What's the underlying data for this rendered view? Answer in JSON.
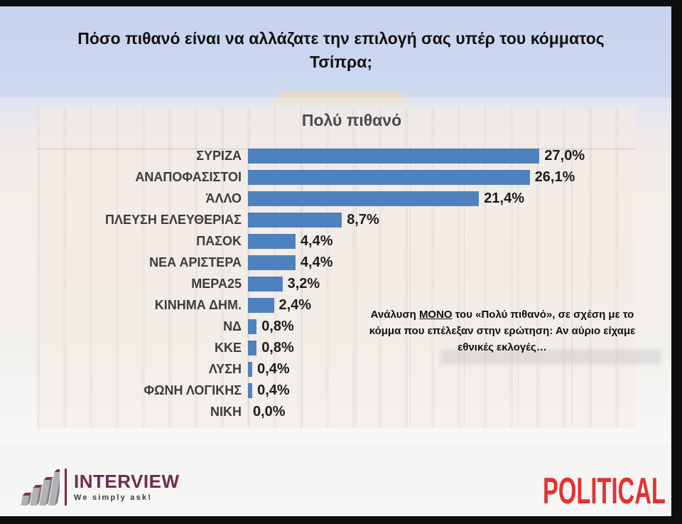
{
  "slide": {
    "title": "Πόσο πιθανό είναι να αλλάζατε την επιλογή σας υπέρ του κόμματος Τσίπρα;"
  },
  "chart_data": {
    "type": "bar",
    "orientation": "horizontal",
    "title": "Πολύ πιθανό",
    "categories": [
      "ΣΥΡΙΖΑ",
      "ΑΝΑΠΟΦΑΣΙΣΤΟΙ",
      "ΆΛΛΟ",
      "ΠΛΕΥΣΗ ΕΛΕΥΘΕΡΙΑΣ",
      "ΠΑΣΟΚ",
      "ΝΕΑ ΑΡΙΣΤΕΡΑ",
      "ΜΕΡΑ25",
      "ΚΙΝΗΜΑ ΔΗΜ.",
      "ΝΔ",
      "ΚΚΕ",
      "ΛΥΣΗ",
      "ΦΩΝΗ ΛΟΓΙΚΗΣ",
      "ΝΙΚΗ"
    ],
    "values": [
      27.0,
      26.1,
      21.4,
      8.7,
      4.4,
      4.4,
      3.2,
      2.4,
      0.8,
      0.8,
      0.4,
      0.4,
      0.0
    ],
    "value_labels": [
      "27,0%",
      "26,1%",
      "21,4%",
      "8,7%",
      "4,4%",
      "4,4%",
      "3,2%",
      "2,4%",
      "0,8%",
      "0,8%",
      "0,4%",
      "0,4%",
      "0,0%"
    ],
    "xlabel": "",
    "ylabel": "",
    "xlim": [
      0,
      30
    ],
    "gridline_step": 5,
    "grid": true,
    "legend": false,
    "bar_color": "#4f81bd"
  },
  "annotation": {
    "prefix": "Ανάλυση ",
    "emphasis": "ΜΟΝΟ",
    "suffix": " του «Πολύ πιθανό», σε σχέση με το κόμμα που επέλεξαν στην ερώτηση: Αν αύριο είχαμε εθνικές εκλογές…"
  },
  "footer": {
    "interview": {
      "name": "INTERVIEW",
      "tagline": "We simply ask!",
      "brand_color": "#6f2a4e"
    },
    "political": {
      "name": "POLITICAL",
      "brand_color": "#e23333"
    }
  }
}
